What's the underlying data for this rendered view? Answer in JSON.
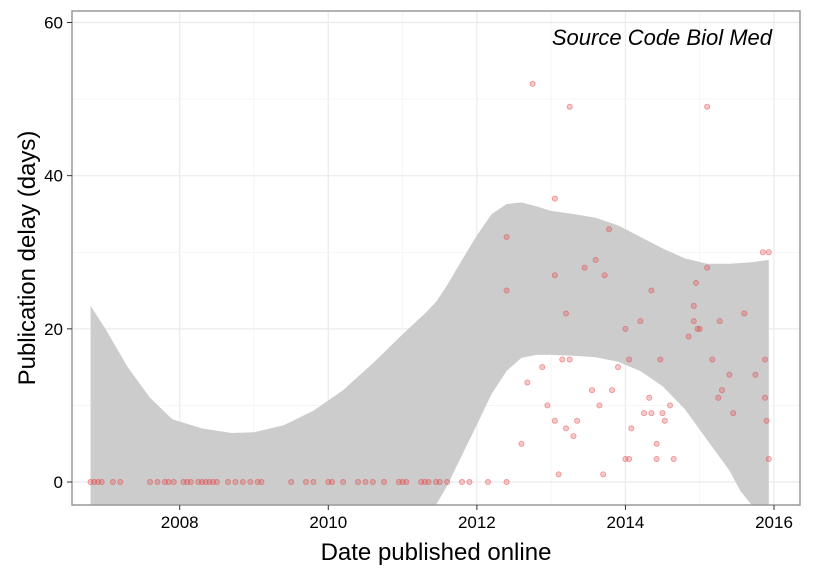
{
  "chart_data": {
    "type": "scatter",
    "title": "",
    "annotation": "Source Code Biol Med",
    "xlabel": "Date published online",
    "ylabel": "Publication delay (days)",
    "xlim": [
      2006.55,
      2016.35
    ],
    "ylim": [
      -3,
      61.5
    ],
    "x_ticks": [
      2008,
      2010,
      2012,
      2014,
      2016
    ],
    "x_tick_labels": [
      "2008",
      "2010",
      "2012",
      "2014",
      "2016"
    ],
    "y_ticks": [
      0,
      20,
      40,
      60
    ],
    "y_tick_labels": [
      "0",
      "20",
      "40",
      "60"
    ],
    "grid": true,
    "legend": "none",
    "colors": {
      "points": "#e34a4a",
      "ribbon": "#cccccc",
      "grid": "#ebebeb",
      "border": "#999999"
    },
    "points": [
      {
        "x": 2006.8,
        "y": 0
      },
      {
        "x": 2006.85,
        "y": 0
      },
      {
        "x": 2006.9,
        "y": 0
      },
      {
        "x": 2006.95,
        "y": 0
      },
      {
        "x": 2007.1,
        "y": 0
      },
      {
        "x": 2007.2,
        "y": 0
      },
      {
        "x": 2007.6,
        "y": 0
      },
      {
        "x": 2007.7,
        "y": 0
      },
      {
        "x": 2007.8,
        "y": 0
      },
      {
        "x": 2007.85,
        "y": 0
      },
      {
        "x": 2007.92,
        "y": 0
      },
      {
        "x": 2008.05,
        "y": 0
      },
      {
        "x": 2008.1,
        "y": 0
      },
      {
        "x": 2008.15,
        "y": 0
      },
      {
        "x": 2008.25,
        "y": 0
      },
      {
        "x": 2008.3,
        "y": 0
      },
      {
        "x": 2008.35,
        "y": 0
      },
      {
        "x": 2008.4,
        "y": 0
      },
      {
        "x": 2008.45,
        "y": 0
      },
      {
        "x": 2008.5,
        "y": 0
      },
      {
        "x": 2008.65,
        "y": 0
      },
      {
        "x": 2008.75,
        "y": 0
      },
      {
        "x": 2008.85,
        "y": 0
      },
      {
        "x": 2008.95,
        "y": 0
      },
      {
        "x": 2009.05,
        "y": 0
      },
      {
        "x": 2009.1,
        "y": 0
      },
      {
        "x": 2009.5,
        "y": 0
      },
      {
        "x": 2009.7,
        "y": 0
      },
      {
        "x": 2009.8,
        "y": 0
      },
      {
        "x": 2010.0,
        "y": 0
      },
      {
        "x": 2010.05,
        "y": 0
      },
      {
        "x": 2010.2,
        "y": 0
      },
      {
        "x": 2010.4,
        "y": 0
      },
      {
        "x": 2010.5,
        "y": 0
      },
      {
        "x": 2010.6,
        "y": 0
      },
      {
        "x": 2010.75,
        "y": 0
      },
      {
        "x": 2010.95,
        "y": 0
      },
      {
        "x": 2011.0,
        "y": 0
      },
      {
        "x": 2011.05,
        "y": 0
      },
      {
        "x": 2011.25,
        "y": 0
      },
      {
        "x": 2011.3,
        "y": 0
      },
      {
        "x": 2011.35,
        "y": 0
      },
      {
        "x": 2011.45,
        "y": 0
      },
      {
        "x": 2011.5,
        "y": 0
      },
      {
        "x": 2011.6,
        "y": 0
      },
      {
        "x": 2011.8,
        "y": 0
      },
      {
        "x": 2011.9,
        "y": 0
      },
      {
        "x": 2012.15,
        "y": 0
      },
      {
        "x": 2012.4,
        "y": 0
      },
      {
        "x": 2012.4,
        "y": 32
      },
      {
        "x": 2012.4,
        "y": 25
      },
      {
        "x": 2012.6,
        "y": 5
      },
      {
        "x": 2012.68,
        "y": 13
      },
      {
        "x": 2012.75,
        "y": 52
      },
      {
        "x": 2012.88,
        "y": 15
      },
      {
        "x": 2012.95,
        "y": 10
      },
      {
        "x": 2013.05,
        "y": 37
      },
      {
        "x": 2013.05,
        "y": 27
      },
      {
        "x": 2013.05,
        "y": 8
      },
      {
        "x": 2013.1,
        "y": 1
      },
      {
        "x": 2013.15,
        "y": 16
      },
      {
        "x": 2013.2,
        "y": 22
      },
      {
        "x": 2013.2,
        "y": 7
      },
      {
        "x": 2013.25,
        "y": 49
      },
      {
        "x": 2013.25,
        "y": 16
      },
      {
        "x": 2013.3,
        "y": 6
      },
      {
        "x": 2013.35,
        "y": 8
      },
      {
        "x": 2013.45,
        "y": 28
      },
      {
        "x": 2013.55,
        "y": 12
      },
      {
        "x": 2013.6,
        "y": 29
      },
      {
        "x": 2013.65,
        "y": 10
      },
      {
        "x": 2013.7,
        "y": 1
      },
      {
        "x": 2013.72,
        "y": 27
      },
      {
        "x": 2013.78,
        "y": 33
      },
      {
        "x": 2013.82,
        "y": 12
      },
      {
        "x": 2013.9,
        "y": 15
      },
      {
        "x": 2014.0,
        "y": 20
      },
      {
        "x": 2014.0,
        "y": 3
      },
      {
        "x": 2014.05,
        "y": 16
      },
      {
        "x": 2014.05,
        "y": 3
      },
      {
        "x": 2014.08,
        "y": 7
      },
      {
        "x": 2014.2,
        "y": 21
      },
      {
        "x": 2014.25,
        "y": 9
      },
      {
        "x": 2014.32,
        "y": 11
      },
      {
        "x": 2014.35,
        "y": 25
      },
      {
        "x": 2014.35,
        "y": 9
      },
      {
        "x": 2014.42,
        "y": 5
      },
      {
        "x": 2014.42,
        "y": 3
      },
      {
        "x": 2014.47,
        "y": 16
      },
      {
        "x": 2014.5,
        "y": 9
      },
      {
        "x": 2014.53,
        "y": 8
      },
      {
        "x": 2014.6,
        "y": 10
      },
      {
        "x": 2014.65,
        "y": 3
      },
      {
        "x": 2014.85,
        "y": 19
      },
      {
        "x": 2014.92,
        "y": 23
      },
      {
        "x": 2014.92,
        "y": 21
      },
      {
        "x": 2014.95,
        "y": 26
      },
      {
        "x": 2014.97,
        "y": 20
      },
      {
        "x": 2015.0,
        "y": 20
      },
      {
        "x": 2015.1,
        "y": 49
      },
      {
        "x": 2015.1,
        "y": 28
      },
      {
        "x": 2015.17,
        "y": 16
      },
      {
        "x": 2015.25,
        "y": 11
      },
      {
        "x": 2015.27,
        "y": 21
      },
      {
        "x": 2015.3,
        "y": 12
      },
      {
        "x": 2015.4,
        "y": 14
      },
      {
        "x": 2015.45,
        "y": 9
      },
      {
        "x": 2015.6,
        "y": 22
      },
      {
        "x": 2015.75,
        "y": 14
      },
      {
        "x": 2015.85,
        "y": 30
      },
      {
        "x": 2015.88,
        "y": 16
      },
      {
        "x": 2015.88,
        "y": 11
      },
      {
        "x": 2015.9,
        "y": 8
      },
      {
        "x": 2015.93,
        "y": 30
      },
      {
        "x": 2015.93,
        "y": 3
      }
    ],
    "ribbon": [
      {
        "x": 2006.8,
        "lower": -3,
        "upper": 23
      },
      {
        "x": 2007.0,
        "lower": -3,
        "upper": 20
      },
      {
        "x": 2007.3,
        "lower": -3,
        "upper": 15
      },
      {
        "x": 2007.6,
        "lower": -3,
        "upper": 11
      },
      {
        "x": 2007.9,
        "lower": -3,
        "upper": 8.2
      },
      {
        "x": 2008.3,
        "lower": -3,
        "upper": 7
      },
      {
        "x": 2008.7,
        "lower": -3,
        "upper": 6.4
      },
      {
        "x": 2009.0,
        "lower": -3,
        "upper": 6.5
      },
      {
        "x": 2009.4,
        "lower": -3,
        "upper": 7.4
      },
      {
        "x": 2009.8,
        "lower": -3,
        "upper": 9.3
      },
      {
        "x": 2010.2,
        "lower": -3,
        "upper": 12
      },
      {
        "x": 2010.6,
        "lower": -3,
        "upper": 15.5
      },
      {
        "x": 2011.0,
        "lower": -3,
        "upper": 19.3
      },
      {
        "x": 2011.3,
        "lower": -3,
        "upper": 22
      },
      {
        "x": 2011.45,
        "lower": -3,
        "upper": 23.5
      },
      {
        "x": 2011.6,
        "lower": -0.5,
        "upper": 25.7
      },
      {
        "x": 2011.8,
        "lower": 3.5,
        "upper": 29
      },
      {
        "x": 2012.0,
        "lower": 7.5,
        "upper": 32.2
      },
      {
        "x": 2012.2,
        "lower": 11.5,
        "upper": 35
      },
      {
        "x": 2012.4,
        "lower": 14.5,
        "upper": 36.3
      },
      {
        "x": 2012.6,
        "lower": 16.2,
        "upper": 36.5
      },
      {
        "x": 2012.8,
        "lower": 16.6,
        "upper": 36
      },
      {
        "x": 2013.0,
        "lower": 16.6,
        "upper": 35.4
      },
      {
        "x": 2013.3,
        "lower": 16.5,
        "upper": 35
      },
      {
        "x": 2013.6,
        "lower": 16.3,
        "upper": 34.5
      },
      {
        "x": 2013.9,
        "lower": 15.7,
        "upper": 33.5
      },
      {
        "x": 2014.2,
        "lower": 14.5,
        "upper": 32
      },
      {
        "x": 2014.5,
        "lower": 12.5,
        "upper": 30.5
      },
      {
        "x": 2014.8,
        "lower": 9.5,
        "upper": 29.2
      },
      {
        "x": 2015.1,
        "lower": 5.5,
        "upper": 28.5
      },
      {
        "x": 2015.4,
        "lower": 1.5,
        "upper": 28.5
      },
      {
        "x": 2015.55,
        "lower": -1.2,
        "upper": 28.6
      },
      {
        "x": 2015.7,
        "lower": -3,
        "upper": 28.7
      },
      {
        "x": 2015.93,
        "lower": -3,
        "upper": 29
      }
    ]
  }
}
